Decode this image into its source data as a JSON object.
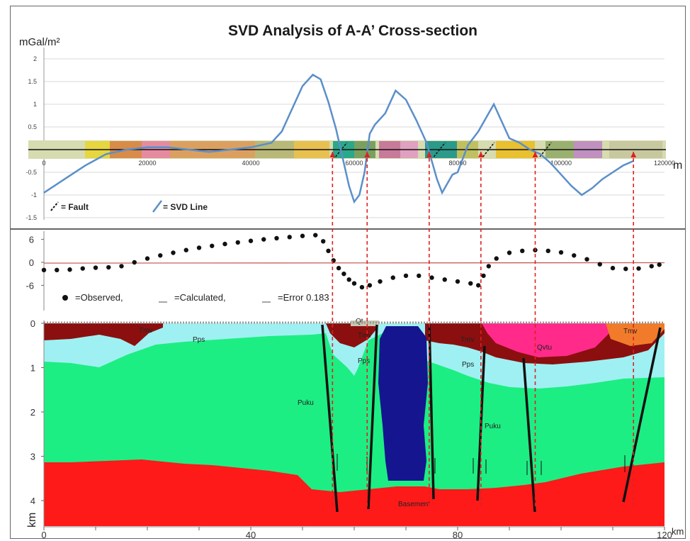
{
  "colors": {
    "svd_line": "#5b8fc9",
    "observed": "#111111",
    "calculated": "#c0504d",
    "pick_line": "#e02020",
    "fault": "#111111",
    "basement": "#ff1a1a",
    "puku": "#1dee83",
    "pps": "#9ff0f2",
    "tmv": "#8b0f0f",
    "qvtu": "#ff2a8a",
    "tmv_orange": "#f27b2b",
    "intrusion": "#15158f"
  },
  "svd_panel": {
    "title": "SVD Analysis of A-A’ Cross-section",
    "ylabel": "mGal/m²",
    "xunit": "m",
    "yticks": [
      "2",
      "1.5",
      "1",
      "0.5",
      "0",
      "-0.5",
      "-1",
      "-1.5"
    ],
    "xticks": [
      "0",
      "20000",
      "40000",
      "60000",
      "80000",
      "100000",
      "120000"
    ],
    "legend": {
      "fault": "= Fault",
      "svd": "= SVD Line"
    }
  },
  "gravity_panel": {
    "yticks": [
      "6",
      "0",
      "-6"
    ],
    "legend": {
      "observed": "=Observed,",
      "calculated": "=Calculated,",
      "error": "=Error 0.183"
    }
  },
  "section_panel": {
    "yticks": [
      "0",
      "1",
      "2",
      "3",
      "4"
    ],
    "xticks": [
      "0",
      "40",
      "80",
      "120"
    ],
    "ylabel": "km",
    "xunit": "km",
    "unit_labels": [
      "Tmv",
      "Pps",
      "Qt",
      "Tmv",
      "Pps",
      "Tmv",
      "Qvtu",
      "Tmv",
      "Pps",
      "Puku",
      "Puku",
      "Basement"
    ]
  },
  "chart_data": [
    {
      "type": "line",
      "title": "SVD Analysis of A-A’ Cross-section",
      "ylabel": "mGal/m²",
      "xlabel": "m",
      "xlim": [
        0,
        120000
      ],
      "ylim": [
        -1.5,
        2
      ],
      "series": [
        {
          "name": "SVD Line",
          "x": [
            0,
            4000,
            8000,
            12000,
            16000,
            20000,
            24000,
            28000,
            32000,
            36000,
            40000,
            44000,
            46000,
            48000,
            50000,
            52000,
            53500,
            55000,
            56500,
            58000,
            59000,
            60000,
            61000,
            62000,
            63000,
            64000,
            66000,
            68000,
            70000,
            72000,
            74000,
            75000,
            76000,
            77000,
            78000,
            79000,
            80000,
            82000,
            84000,
            86000,
            87000,
            88000,
            90000,
            92000,
            94000,
            96000,
            98000,
            100000,
            102000,
            104000,
            106000,
            108000,
            110000,
            112000,
            114000
          ],
          "y": [
            -0.95,
            -0.65,
            -0.35,
            -0.1,
            0.0,
            0.05,
            0.05,
            0.0,
            -0.05,
            0.0,
            0.05,
            0.15,
            0.4,
            0.9,
            1.4,
            1.65,
            1.55,
            1.05,
            0.45,
            -0.3,
            -0.8,
            -1.15,
            -1.0,
            -0.5,
            0.35,
            0.55,
            0.8,
            1.3,
            1.1,
            0.65,
            0.15,
            -0.25,
            -0.65,
            -0.95,
            -0.75,
            -0.55,
            -0.5,
            0.1,
            0.4,
            0.8,
            1.0,
            0.75,
            0.25,
            0.15,
            0.0,
            -0.1,
            -0.3,
            -0.55,
            -0.8,
            -1.0,
            -0.85,
            -0.65,
            -0.5,
            -0.35,
            -0.25
          ]
        }
      ],
      "annotations": [
        "= Fault"
      ]
    },
    {
      "type": "scatter",
      "xlim": [
        0,
        120000
      ],
      "ylim": [
        -9,
        8
      ],
      "series": [
        {
          "name": "Observed",
          "x": [
            0,
            2500,
            5000,
            7500,
            10000,
            12500,
            15000,
            17500,
            20000,
            22500,
            25000,
            27500,
            30000,
            32500,
            35000,
            37500,
            40000,
            42500,
            45000,
            47500,
            50000,
            52500,
            54000,
            55000,
            56000,
            57000,
            58000,
            59000,
            60000,
            61500,
            63000,
            65000,
            67500,
            70000,
            72500,
            75000,
            77500,
            80000,
            82500,
            84000,
            85000,
            86000,
            87500,
            90000,
            92500,
            95000,
            97500,
            100000,
            102500,
            105000,
            107500,
            110000,
            112500,
            115000,
            117500,
            119000
          ],
          "y": [
            -2.0,
            -2.0,
            -1.9,
            -1.6,
            -1.4,
            -1.3,
            -1.0,
            0.0,
            1.0,
            1.8,
            2.5,
            3.2,
            3.8,
            4.3,
            4.8,
            5.2,
            5.6,
            6.0,
            6.3,
            6.6,
            6.9,
            7.1,
            5.5,
            3.0,
            0.5,
            -1.5,
            -3.0,
            -4.5,
            -5.5,
            -6.5,
            -6.0,
            -5.0,
            -4.0,
            -3.5,
            -3.5,
            -4.0,
            -4.5,
            -5.0,
            -5.5,
            -6.0,
            -3.5,
            -1.0,
            1.0,
            2.5,
            3.0,
            3.2,
            3.0,
            2.6,
            1.8,
            0.8,
            -0.5,
            -1.5,
            -1.7,
            -1.6,
            -1.0,
            -0.6
          ]
        },
        {
          "name": "Calculated",
          "x": [
            0,
            20000,
            40000,
            60000,
            80000,
            100000,
            120000
          ],
          "y": [
            -0.2,
            -0.1,
            0.0,
            0.1,
            0.0,
            -0.1,
            -0.1
          ]
        }
      ]
    }
  ]
}
